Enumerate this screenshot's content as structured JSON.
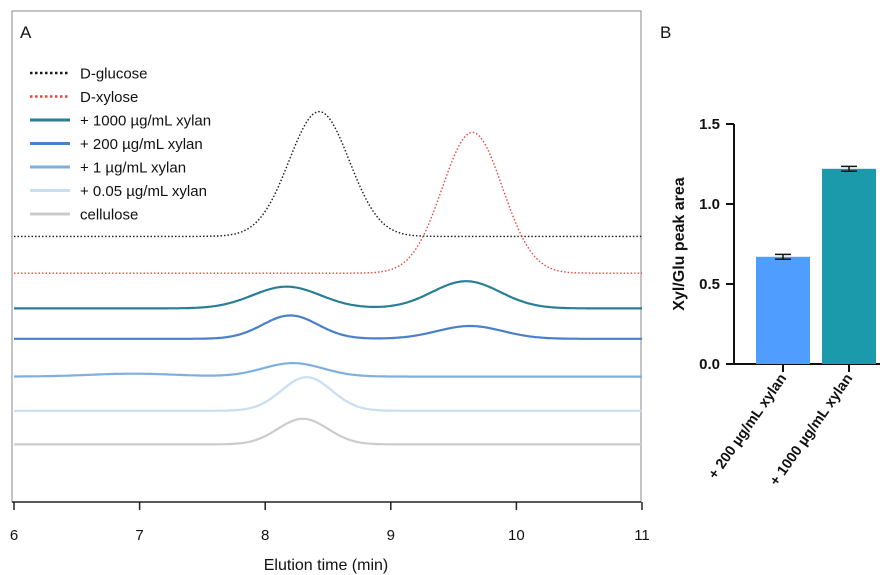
{
  "chart_data": [
    {
      "panel_label": "A",
      "type": "line",
      "xlabel": "Elution time (min)",
      "ylabel": "",
      "xlim": [
        6,
        11
      ],
      "xticks": [
        6,
        7,
        8,
        9,
        10,
        11
      ],
      "y_axis": "hidden (traces vertically offset, no scale)",
      "legend": "top-left",
      "series": [
        {
          "name": "D-glucose",
          "color": "#1a1a1a",
          "dash": "dotted",
          "baseline": 0.8,
          "peaks": [
            {
              "center": 8.43,
              "height": 3.9,
              "width": 0.24
            }
          ]
        },
        {
          "name": "D-xylose",
          "color": "#e8453c",
          "dash": "dotted",
          "baseline": -0.35,
          "peaks": [
            {
              "center": 9.65,
              "height": 4.4,
              "width": 0.24
            }
          ]
        },
        {
          "name": "+ 1000 µg/mL xylan",
          "color": "#2a7f95",
          "dash": "solid",
          "baseline": -1.45,
          "peaks": [
            {
              "center": 8.17,
              "height": 0.68,
              "width": 0.27
            },
            {
              "center": 9.6,
              "height": 0.85,
              "width": 0.27
            }
          ]
        },
        {
          "name": "+ 200 µg/mL xylan",
          "color": "#4a7fc9",
          "dash": "solid",
          "baseline": -2.4,
          "peaks": [
            {
              "center": 8.2,
              "height": 0.73,
              "width": 0.22
            },
            {
              "center": 9.63,
              "height": 0.4,
              "width": 0.26
            }
          ]
        },
        {
          "name": "+ 1 µg/mL xylan",
          "color": "#7faee0",
          "dash": "solid",
          "baseline": -3.58,
          "peaks": [
            {
              "center": 8.22,
              "height": 0.42,
              "width": 0.24
            },
            {
              "center": 6.95,
              "height": 0.09,
              "width": 0.35
            }
          ]
        },
        {
          "name": "+ 0.05 µg/mL xylan",
          "color": "#c7def3",
          "dash": "solid",
          "baseline": -4.65,
          "peaks": [
            {
              "center": 8.33,
              "height": 1.05,
              "width": 0.2
            }
          ]
        },
        {
          "name": "cellulose",
          "color": "#cccccc",
          "dash": "solid",
          "baseline": -5.7,
          "peaks": [
            {
              "center": 8.3,
              "height": 0.8,
              "width": 0.2
            }
          ]
        }
      ]
    },
    {
      "panel_label": "B",
      "type": "bar",
      "ylabel": "Xyl/Glu peak area",
      "ylim": [
        0,
        1.5
      ],
      "yticks": [
        "0.0",
        "0.5",
        "1.0",
        "1.5"
      ],
      "categories": [
        "+ 200 µg/mL xylan",
        "+ 1000 µg/mL xylan"
      ],
      "values": [
        0.67,
        1.22
      ],
      "errors": [
        0.015,
        0.015
      ],
      "colors": [
        "#4f9dff",
        "#1a9aaa"
      ]
    }
  ]
}
